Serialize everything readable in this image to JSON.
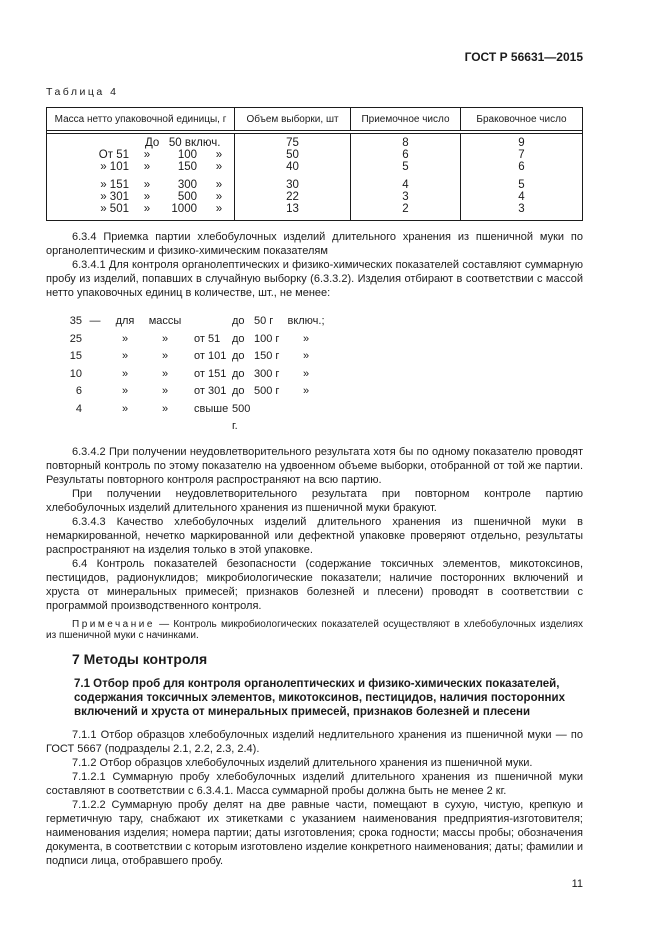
{
  "doc_header": {
    "standard": "ГОСТ Р 56631—2015"
  },
  "table4": {
    "label": "Таблица 4",
    "headers": [
      "Масса нетто упаковочной единицы, г",
      "Объем выборки, шт",
      "Приемочное число",
      "Браковочное число"
    ],
    "rows": [
      {
        "mass": "До   50 включ.",
        "volume": "75",
        "acceptance": "8",
        "rejection": "9"
      },
      {
        "mass_parts": [
          "От 51",
          "»",
          "100",
          "»"
        ],
        "volume": "50",
        "acceptance": "6",
        "rejection": "7"
      },
      {
        "mass_parts": [
          "» 101",
          "»",
          "150",
          "»"
        ],
        "volume": "40",
        "acceptance": "5",
        "rejection": "6"
      },
      {
        "mass_parts": [
          "» 151",
          "»",
          "300",
          "»"
        ],
        "volume": "30",
        "acceptance": "4",
        "rejection": "5"
      },
      {
        "mass_parts": [
          "» 301",
          "»",
          "500",
          "»"
        ],
        "volume": "22",
        "acceptance": "3",
        "rejection": "4"
      },
      {
        "mass_parts": [
          "» 501",
          "»",
          "1000",
          "»"
        ],
        "volume": "13",
        "acceptance": "2",
        "rejection": "3"
      }
    ]
  },
  "content": {
    "para_6_3_4": "6.3.4 Приемка партии хлебобулочных изделий длительного хранения из пшеничной муки по органолептическим и физико-химическим показателям",
    "para_6_3_4_1": "6.3.4.1 Для контроля органолептических и физико-химических показателей составляют суммарную пробу из изделий, попавших в случайную выборку (6.3.3.2). Изделия отбирают в соответствии с массой нетто упаковочных единиц в количестве, шт., не менее:",
    "sampling_rows": [
      [
        "35",
        "—",
        "для",
        "массы",
        "",
        "до",
        "50 г",
        "включ.;"
      ],
      [
        "25",
        "",
        "»",
        "»",
        "от 51",
        "до",
        "100 г",
        "»"
      ],
      [
        "15",
        "",
        "»",
        "»",
        "от 101",
        "до",
        "150 г",
        "»"
      ],
      [
        "10",
        "",
        "»",
        "»",
        "от 151",
        "до",
        "300 г",
        "»"
      ],
      [
        "6",
        "",
        "»",
        "»",
        "от 301",
        "до",
        "500 г",
        "»"
      ],
      [
        "4",
        "",
        "»",
        "»",
        "свыше",
        "500 г.",
        "",
        ""
      ]
    ],
    "para_6_3_4_2": "6.3.4.2 При получении неудовлетворительного результата хотя бы по одному показателю проводят повторный контроль по этому показателю на удвоенном объеме выборки, отобранной от той же партии. Результаты повторного контроля распространяют на всю партию.",
    "para_6_3_4_2b": "При получении неудовлетворительного результата при повторном контроле партию хлебобулочных изделий длительного хранения из пшеничной муки бракуют.",
    "para_6_3_4_3": "6.3.4.3 Качество хлебобулочных изделий длительного хранения из пшеничной муки в немаркированной, нечетко маркированной или дефектной упаковке проверяют отдельно, результаты распространяют на изделия только в этой упаковке.",
    "para_6_4": "6.4 Контроль показателей безопасности (содержание токсичных элементов, микотоксинов, пестицидов, радионуклидов; микробиологические показатели; наличие посторонних включений и хруста от минеральных примесей; признаков болезней и плесени) проводят в соответствии с программой производственного контроля.",
    "note": {
      "label": "Примечание",
      "text": "— Контроль микробиологических показателей осуществляют в хлебобулочных изделиях из пшеничной муки с начинками."
    },
    "heading_7": "7 Методы контроля",
    "heading_7_1": "7.1 Отбор проб для контроля органолептических и физико-химических показателей, содержания токсичных элементов, микотоксинов, пестицидов, наличия посторонних включений и хруста от минеральных примесей, признаков болезней и плесени",
    "para_7_1_1": "7.1.1 Отбор образцов хлебобулочных изделий недлительного хранения из пшеничной муки — по ГОСТ 5667 (подразделы 2.1, 2.2, 2.3, 2.4).",
    "para_7_1_2": "7.1.2 Отбор образцов хлебобулочных изделий длительного хранения из пшеничной муки.",
    "para_7_1_2_1": "7.1.2.1 Суммарную пробу хлебобулочных изделий длительного хранения из пшеничной муки составляют в соответствии с 6.3.4.1. Масса суммарной пробы должна быть не менее 2 кг.",
    "para_7_1_2_2": "7.1.2.2 Суммарную пробу делят на две равные части, помещают в сухую, чистую, крепкую и герметичную тару, снабжают их этикетками с указанием наименования предприятия-изготовителя; наименования изделия; номера партии; даты изготовления; срока годности; массы пробы; обозначения документа, в соответствии с которым изготовлено изделие конкретного наименования; даты; фамилии и подписи лица, отобравшего пробу."
  },
  "footer": {
    "page_number": "11"
  }
}
